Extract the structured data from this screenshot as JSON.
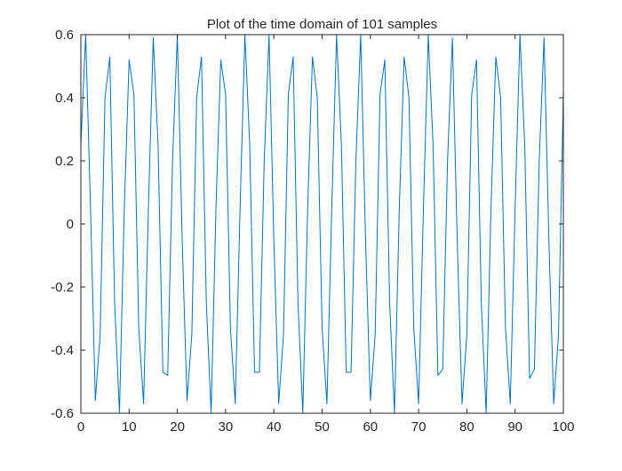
{
  "chart_data": {
    "type": "line",
    "title": "Plot of the time domain of 101 samples",
    "xlabel": "",
    "ylabel": "",
    "xlim": [
      0,
      100
    ],
    "ylim": [
      -0.6,
      0.6
    ],
    "grid": false,
    "x_ticks": [
      0,
      10,
      20,
      30,
      40,
      50,
      60,
      70,
      80,
      90,
      100
    ],
    "x_tick_labels": [
      "0",
      "10",
      "20",
      "30",
      "40",
      "50",
      "60",
      "70",
      "80",
      "90",
      "100"
    ],
    "y_ticks": [
      -0.6,
      -0.4,
      -0.2,
      0,
      0.2,
      0.4,
      0.6
    ],
    "y_tick_labels": [
      "-0.6",
      "-0.4",
      "-0.2",
      "0",
      "0.2",
      "0.4",
      "0.6"
    ],
    "line_color": "#0072BD",
    "series": [
      {
        "x": [
          0,
          1,
          2,
          3,
          4,
          5,
          6,
          7,
          8,
          9,
          10,
          11,
          12,
          13,
          14,
          15,
          16,
          17,
          18,
          19,
          20,
          21,
          22,
          23,
          24,
          25,
          26,
          27,
          28,
          29,
          30,
          31,
          32,
          33,
          34,
          35,
          36,
          37,
          38,
          39,
          40,
          41,
          42,
          43,
          44,
          45,
          46,
          47,
          48,
          49,
          50,
          51,
          52,
          53,
          54,
          55,
          56,
          57,
          58,
          59,
          60,
          61,
          62,
          63,
          64,
          65,
          66,
          67,
          68,
          69,
          70,
          71,
          72,
          73,
          74,
          75,
          76,
          77,
          78,
          79,
          80,
          81,
          82,
          83,
          84,
          85,
          86,
          87,
          88,
          89,
          90,
          91,
          92,
          93,
          94,
          95,
          96,
          97,
          98,
          99,
          100
        ],
        "values": [
          0.25,
          0.6,
          0.05,
          -0.56,
          -0.35,
          0.4,
          0.53,
          -0.25,
          -0.6,
          0.05,
          0.52,
          0.41,
          -0.33,
          -0.57,
          0.05,
          0.59,
          0.25,
          -0.47,
          -0.48,
          0.2,
          0.6,
          -0.05,
          -0.56,
          -0.35,
          0.4,
          0.53,
          -0.25,
          -0.6,
          0.05,
          0.52,
          0.41,
          -0.33,
          -0.57,
          0.05,
          0.6,
          0.25,
          -0.47,
          -0.47,
          0.2,
          0.6,
          -0.05,
          -0.57,
          -0.35,
          0.41,
          0.53,
          -0.25,
          -0.6,
          0.05,
          0.53,
          0.4,
          -0.33,
          -0.57,
          0.05,
          0.6,
          0.25,
          -0.47,
          -0.47,
          0.2,
          0.6,
          -0.05,
          -0.56,
          -0.35,
          0.41,
          0.52,
          -0.25,
          -0.6,
          0.05,
          0.53,
          0.4,
          -0.33,
          -0.57,
          0.05,
          0.6,
          0.25,
          -0.48,
          -0.46,
          0.2,
          0.59,
          -0.05,
          -0.57,
          -0.35,
          0.41,
          0.52,
          -0.25,
          -0.6,
          0.05,
          0.53,
          0.4,
          -0.33,
          -0.57,
          0.05,
          0.6,
          0.25,
          -0.49,
          -0.46,
          0.2,
          0.59,
          -0.05,
          -0.57,
          -0.35,
          0.42
        ]
      }
    ]
  }
}
